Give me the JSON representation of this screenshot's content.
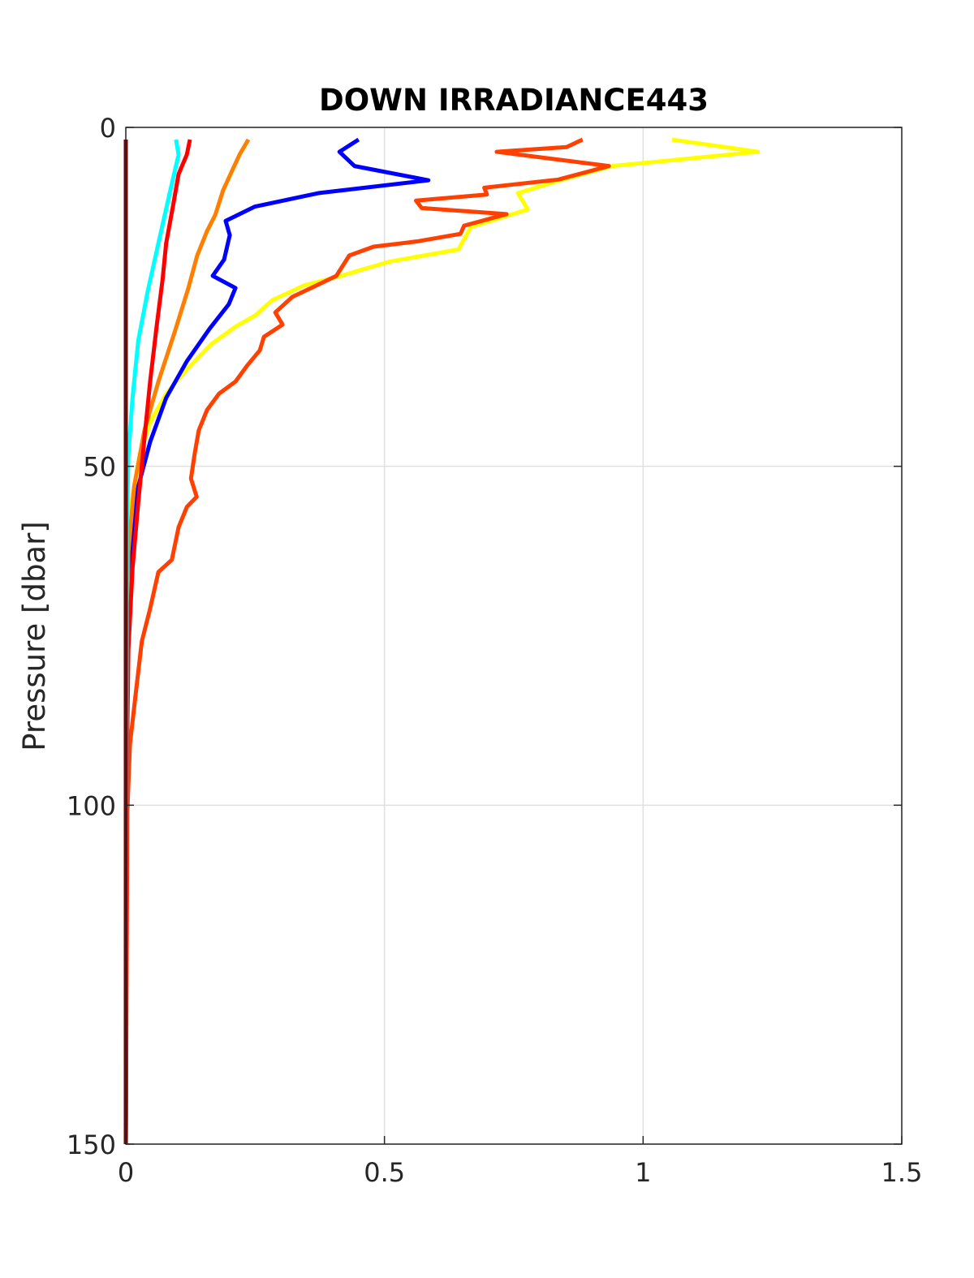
{
  "chart_data": {
    "type": "line",
    "title": "DOWN IRRADIANCE443",
    "ylabel": "Pressure [dbar]",
    "xlim": [
      0,
      1.5
    ],
    "xticks": [
      0,
      0.5,
      1,
      1.5
    ],
    "ylim": [
      0,
      150
    ],
    "yticks": [
      0,
      50,
      100,
      150
    ],
    "y_reversed": true,
    "grid": true,
    "series": [
      {
        "color": "#ffff00",
        "x": [
          1.056,
          1.222,
          0.941,
          0.84,
          0.758,
          0.777,
          0.667,
          0.643,
          0.51,
          0.416,
          0.345,
          0.283,
          0.251,
          0.212,
          0.165,
          0.118,
          0.078,
          0.047,
          0.027,
          0.011,
          0.005,
          0.002,
          0
        ],
        "y": [
          1.8,
          3.6,
          5.7,
          7.8,
          9.7,
          12.1,
          14.7,
          18,
          19.8,
          21.9,
          23.3,
          25.5,
          27.7,
          29.4,
          32,
          35.7,
          39.3,
          43.5,
          48.2,
          55.4,
          65,
          89,
          150
        ]
      },
      {
        "color": "#ff4000",
        "x": [
          0.883,
          0.852,
          0.717,
          0.934,
          0.836,
          0.693,
          0.698,
          0.561,
          0.572,
          0.736,
          0.654,
          0.647,
          0.565,
          0.479,
          0.432,
          0.407,
          0.369,
          0.322,
          0.289,
          0.303,
          0.267,
          0.259,
          0.235,
          0.212,
          0.18,
          0.157,
          0.141,
          0.133,
          0.126,
          0.137,
          0.118,
          0.102,
          0.089,
          0.063,
          0.047,
          0.031,
          0.02,
          0.008,
          0.003,
          0
        ],
        "y": [
          1.8,
          2.9,
          3.6,
          5.7,
          7.7,
          8.9,
          9.9,
          10.8,
          11.9,
          12.8,
          14.5,
          15.7,
          16.8,
          17.6,
          18.9,
          21.9,
          23.3,
          25,
          27.3,
          29.1,
          30.9,
          32.9,
          35.1,
          37.5,
          39.3,
          41.7,
          44.7,
          48.2,
          51.8,
          54.5,
          56,
          59,
          63.8,
          65.6,
          71,
          75.8,
          83,
          91,
          101,
          150
        ]
      },
      {
        "color": "#0000ff",
        "x": [
          0.45,
          0.413,
          0.442,
          0.585,
          0.372,
          0.249,
          0.193,
          0.201,
          0.19,
          0.168,
          0.212,
          0.199,
          0.162,
          0.118,
          0.078,
          0.047,
          0.024,
          0.008,
          0.002,
          0
        ],
        "y": [
          1.8,
          3.6,
          5.7,
          7.8,
          9.7,
          11.7,
          13.8,
          15.9,
          19.5,
          21.9,
          23.7,
          26.1,
          29.7,
          34.5,
          39.9,
          46.4,
          53,
          62.6,
          77,
          150
        ]
      },
      {
        "color": "#ff8000",
        "x": [
          0.237,
          0.22,
          0.206,
          0.188,
          0.173,
          0.157,
          0.138,
          0.121,
          0.094,
          0.063,
          0.036,
          0.016,
          0.005,
          0.002,
          0
        ],
        "y": [
          1.8,
          4,
          6.3,
          9.3,
          12.9,
          15.3,
          18.9,
          23.7,
          30.3,
          37.5,
          44.7,
          53,
          62.6,
          77,
          150
        ]
      },
      {
        "color": "#ff0000",
        "x": [
          0.124,
          0.118,
          0.102,
          0.091,
          0.078,
          0.071,
          0.06,
          0.047,
          0.036,
          0.024,
          0.013,
          0.005,
          0.002,
          0
        ],
        "y": [
          1.8,
          4,
          6.9,
          11.7,
          17.1,
          22.5,
          29.1,
          37.5,
          45.9,
          55.4,
          65,
          77,
          95,
          150
        ]
      },
      {
        "color": "#00ffff",
        "x": [
          0.097,
          0.102,
          0.086,
          0.063,
          0.042,
          0.024,
          0.013,
          0.005,
          0.002,
          0
        ],
        "y": [
          1.8,
          4,
          9.3,
          17.1,
          24.3,
          31.5,
          39.9,
          48.2,
          59,
          150
        ]
      },
      {
        "color": "#800000",
        "x": [
          0,
          0
        ],
        "y": [
          1.8,
          150
        ]
      }
    ]
  }
}
